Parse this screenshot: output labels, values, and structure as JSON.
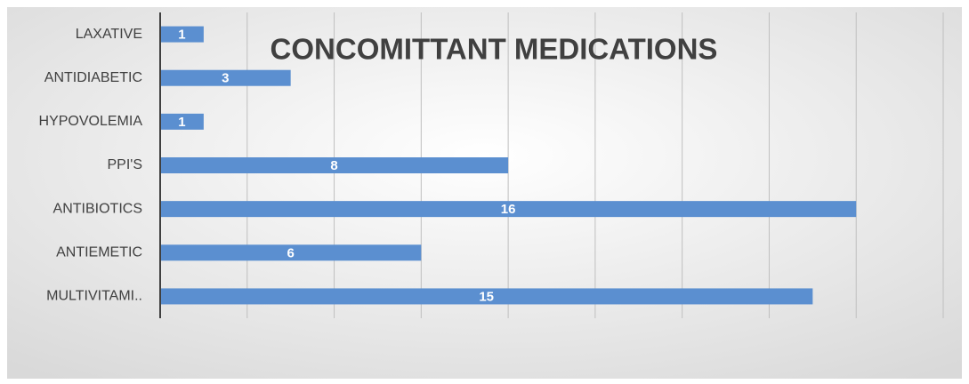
{
  "chart_data": {
    "type": "hbar",
    "title": "CONCOMITTANT MEDICATIONS",
    "categories": [
      "LAXATIVE",
      "ANTIDIABETIC",
      "HYPOVOLEMIA",
      "PPI'S",
      "ANTIBIOTICS",
      "ANTIEMETIC",
      "MULTIVITAMI.."
    ],
    "values": [
      1,
      3,
      1,
      8,
      16,
      6,
      15
    ],
    "color": "#5b8fd0",
    "xlim": [
      0,
      18
    ],
    "xticks": [
      0,
      2,
      4,
      6,
      8,
      10,
      12,
      14,
      16,
      18
    ],
    "grid": true
  }
}
